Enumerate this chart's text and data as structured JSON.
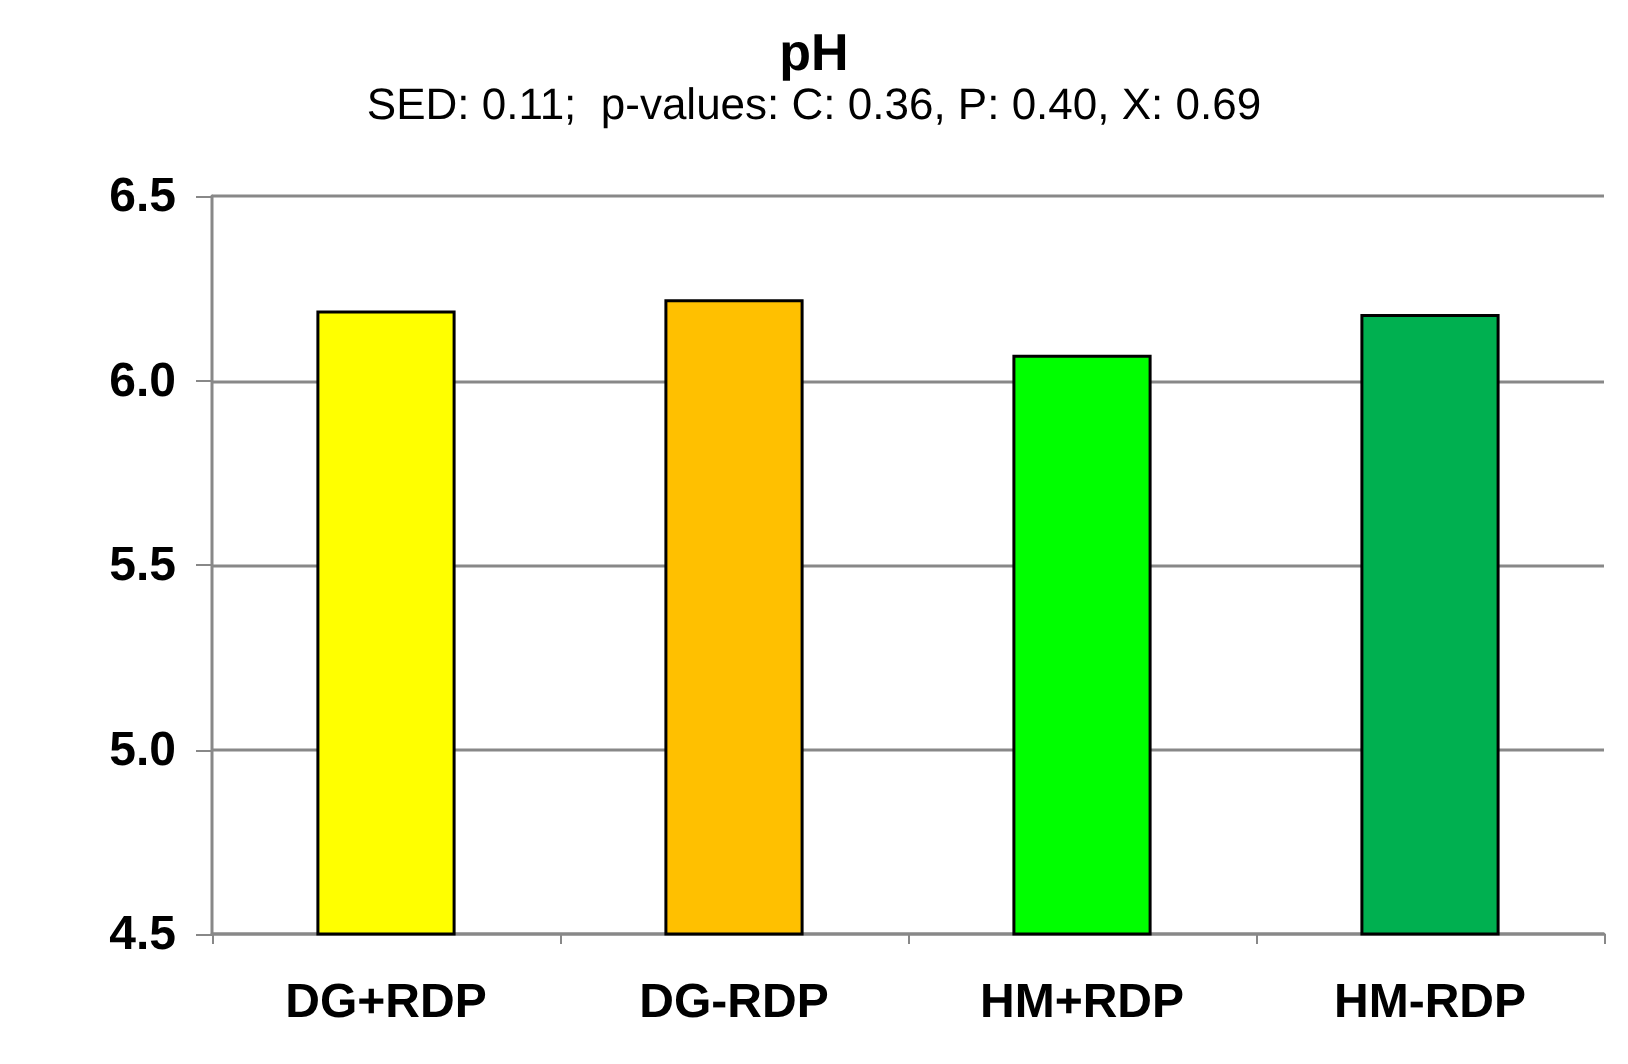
{
  "chart_data": {
    "type": "bar",
    "title": "pH",
    "subtitle": "SED: 0.11;  p-values: C: 0.36, P: 0.40, X: 0.69",
    "categories": [
      "DG+RDP",
      "DG-RDP",
      "HM+RDP",
      "HM-RDP"
    ],
    "values": [
      6.19,
      6.22,
      6.07,
      6.18
    ],
    "colors": [
      "#ffff00",
      "#ffc000",
      "#00ff00",
      "#00b050"
    ],
    "ylim": [
      4.5,
      6.5
    ],
    "yticks": [
      4.5,
      {
        "value": 5,
        "label": "5.0"
      },
      5.5,
      {
        "value": 6,
        "label": "6.0"
      },
      6.5
    ],
    "grid": "y"
  }
}
